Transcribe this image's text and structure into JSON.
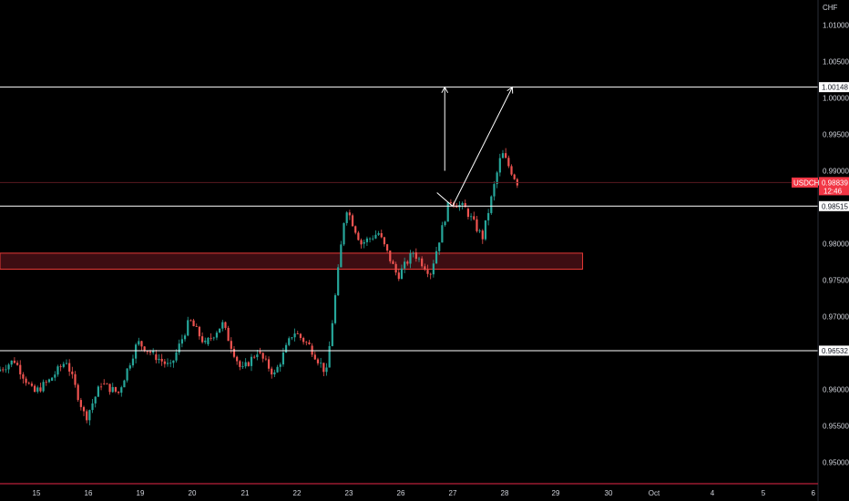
{
  "chart_data": {
    "type": "candlestick",
    "symbol": "USDCHF",
    "currency": "CHF",
    "countdown": "12:46",
    "last_price": 0.98839,
    "y_ticks": [
      "1.01000",
      "1.00500",
      "1.00000",
      "0.99500",
      "0.99000",
      "0.98500",
      "0.98000",
      "0.97500",
      "0.97000",
      "0.96500",
      "0.96000",
      "0.95500",
      "0.95000"
    ],
    "x_ticks": [
      "15",
      "16",
      "19",
      "20",
      "21",
      "22",
      "23",
      "26",
      "27",
      "28",
      "29",
      "30",
      "Oct",
      "4",
      "5",
      "6"
    ],
    "horizontal_levels": [
      {
        "value": 1.00148,
        "label": "1.00148"
      },
      {
        "value": 0.98515,
        "label": "0.98515"
      },
      {
        "value": 0.96532,
        "label": "0.96532"
      }
    ],
    "zone": {
      "from_day": 0,
      "to_day": 10.5,
      "low": 0.9765,
      "high": 0.9787
    },
    "projection_path": [
      {
        "day": 7.7,
        "price": 0.987
      },
      {
        "day": 8.0,
        "price": 0.98515
      },
      {
        "day": 9.15,
        "price": 1.00148
      }
    ],
    "up_arrow": {
      "day": 7.85,
      "from": 0.99,
      "to": 1.00148
    },
    "colors": {
      "up": "#26a69a",
      "down": "#ef5350",
      "zone_fill": "#3d0d12",
      "zone_border": "#e53935",
      "line": "#ffffff",
      "tag_bg": "#f23645"
    },
    "daily": [
      {
        "day": "14",
        "open": 0.9625,
        "high": 0.964,
        "low": 0.9595,
        "close": 0.9612
      },
      {
        "day": "15",
        "open": 0.9612,
        "high": 0.964,
        "low": 0.956,
        "close": 0.9608
      },
      {
        "day": "16",
        "open": 0.9608,
        "high": 0.9665,
        "low": 0.9595,
        "close": 0.9648
      },
      {
        "day": "19",
        "open": 0.9648,
        "high": 0.9695,
        "low": 0.963,
        "close": 0.9662
      },
      {
        "day": "20",
        "open": 0.9662,
        "high": 0.969,
        "low": 0.9625,
        "close": 0.9652
      },
      {
        "day": "21",
        "open": 0.9652,
        "high": 0.968,
        "low": 0.962,
        "close": 0.966
      },
      {
        "day": "22",
        "open": 0.966,
        "high": 0.9852,
        "low": 0.9622,
        "close": 0.98
      },
      {
        "day": "23",
        "open": 0.98,
        "high": 0.9815,
        "low": 0.9755,
        "close": 0.9788
      },
      {
        "day": "26",
        "open": 0.9788,
        "high": 0.986,
        "low": 0.976,
        "close": 0.9848
      },
      {
        "day": "27",
        "open": 0.9848,
        "high": 0.9925,
        "low": 0.9808,
        "close": 0.98839
      }
    ]
  }
}
